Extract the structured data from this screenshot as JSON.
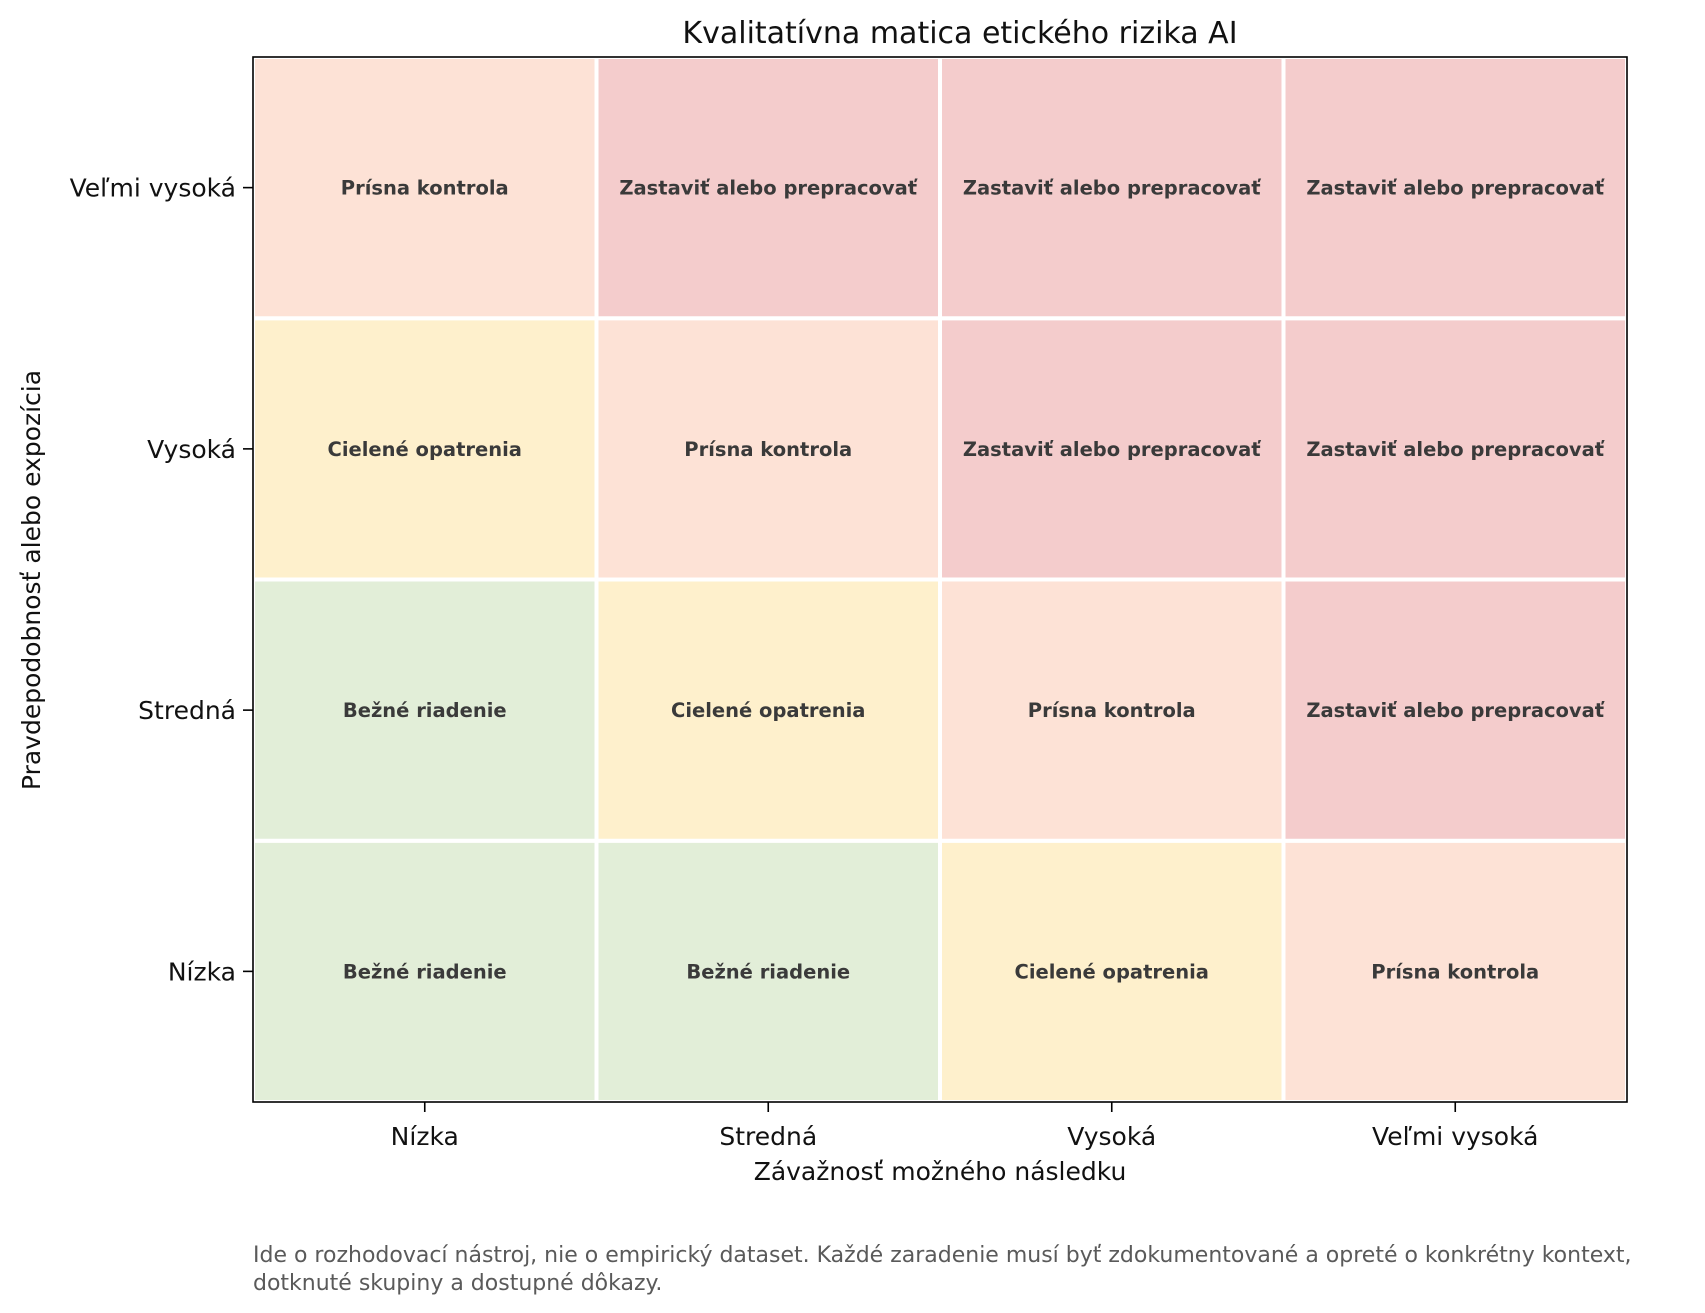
{
  "chart_data": {
    "type": "heatmap",
    "title": "Kvalitatívna matica etického rizika AI",
    "xlabel": "Závažnosť možného následku",
    "ylabel": "Pravdepodobnosť alebo expozícia",
    "x_categories": [
      "Nízka",
      "Stredná",
      "Vysoká",
      "Veľmi vysoká"
    ],
    "y_categories": [
      "Nízka",
      "Stredná",
      "Vysoká",
      "Veľmi vysoká"
    ],
    "levels": [
      {
        "label": "Bežné riadenie",
        "color": "#e2eed8"
      },
      {
        "label": "Cielené opatrenia",
        "color": "#fef0cc"
      },
      {
        "label": "Prísna kontrola",
        "color": "#fde2d6"
      },
      {
        "label": "Zastaviť alebo prepracovať",
        "color": "#f4cccc"
      }
    ],
    "cells": [
      [
        "Bežné riadenie",
        "Bežné riadenie",
        "Cielené opatrenia",
        "Prísna kontrola"
      ],
      [
        "Bežné riadenie",
        "Cielené opatrenia",
        "Prísna kontrola",
        "Zastaviť alebo prepracovať"
      ],
      [
        "Cielené opatrenia",
        "Prísna kontrola",
        "Zastaviť alebo prepracovať",
        "Zastaviť alebo prepracovať"
      ],
      [
        "Prísna kontrola",
        "Zastaviť alebo prepracovať",
        "Zastaviť alebo prepracovať",
        "Zastaviť alebo prepracovať"
      ]
    ],
    "grid": false
  },
  "footnote": "Ide o rozhodovací nástroj, nie o empirický dataset. Každé zaradenie musí byť zdokumentované a opreté o konkrétny kontext,\ndotknuté skupiny a dostupné dôkazy."
}
